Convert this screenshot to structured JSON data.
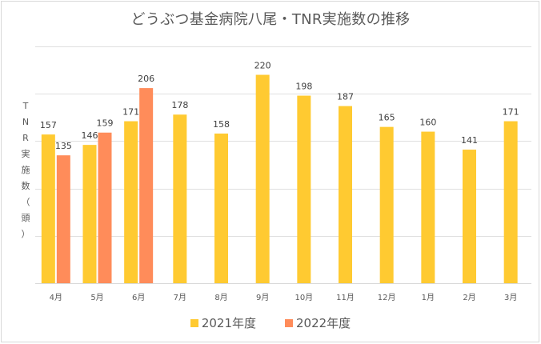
{
  "chart_data": {
    "type": "bar",
    "title": "どうぶつ基金病院八尾・TNR実施数の推移",
    "xlabel": "",
    "ylabel": "TNR実施数（頭）",
    "ylim": [
      0,
      250
    ],
    "gridlines": [
      0,
      50,
      100,
      150,
      200,
      250
    ],
    "grid": true,
    "show_y_tick_labels": false,
    "categories": [
      "4月",
      "5月",
      "6月",
      "7月",
      "8月",
      "9月",
      "10月",
      "11月",
      "12月",
      "1月",
      "2月",
      "3月"
    ],
    "series": [
      {
        "name": "2021年度",
        "color": "#FFCA31",
        "values": [
          157,
          146,
          171,
          178,
          158,
          220,
          198,
          187,
          165,
          160,
          141,
          171
        ]
      },
      {
        "name": "2022年度",
        "color": "#FF8C5A",
        "values": [
          135,
          159,
          206,
          null,
          null,
          null,
          null,
          null,
          null,
          null,
          null,
          null
        ]
      }
    ],
    "legend_position": "bottom"
  },
  "ylabel_chars": [
    "T",
    "N",
    "R",
    "実",
    "施",
    "数",
    "（",
    "頭",
    "）"
  ]
}
